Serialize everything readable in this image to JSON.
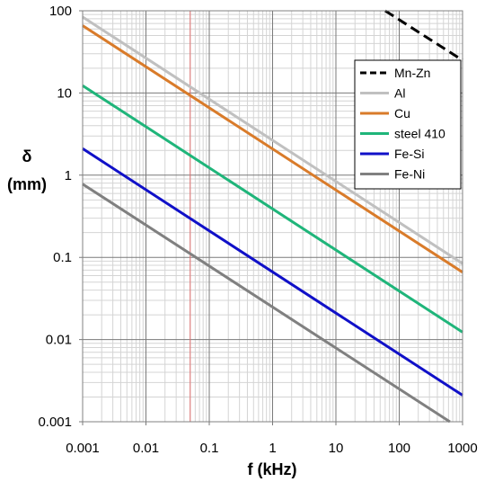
{
  "chart_data": {
    "type": "line",
    "title": "",
    "xlabel": "f (kHz)",
    "ylabel_symbol": "δ",
    "ylabel_unit": "(mm)",
    "xscale": "log",
    "yscale": "log",
    "xlim": [
      0.001,
      1000
    ],
    "ylim": [
      0.001,
      100
    ],
    "x_tick_labels": [
      "0.001",
      "0.01",
      "0.1",
      "1",
      "10",
      "100",
      "1000"
    ],
    "y_tick_labels": [
      "0.001",
      "0.01",
      "0.1",
      "1",
      "10",
      "100"
    ],
    "grid": true,
    "legend_position": "top-right",
    "reference_line": {
      "x": 0.05,
      "color": "#e07070"
    },
    "series": [
      {
        "name": "Mn-Zn",
        "color": "#000000",
        "dash": "dashed",
        "x": [
          60,
          1000
        ],
        "y": [
          100,
          25
        ]
      },
      {
        "name": "Al",
        "color": "#c0c0c0",
        "dash": "solid",
        "x": [
          0.001,
          1000
        ],
        "y": [
          84,
          0.084
        ]
      },
      {
        "name": "Cu",
        "color": "#d97b2a",
        "dash": "solid",
        "x": [
          0.001,
          1000
        ],
        "y": [
          66,
          0.066
        ]
      },
      {
        "name": "steel 410",
        "color": "#1fb57a",
        "dash": "solid",
        "x": [
          0.001,
          1000
        ],
        "y": [
          12.3,
          0.0123
        ]
      },
      {
        "name": "Fe-Si",
        "color": "#1010c8",
        "dash": "solid",
        "x": [
          0.001,
          1000
        ],
        "y": [
          2.1,
          0.0021
        ]
      },
      {
        "name": "Fe-Ni",
        "color": "#808080",
        "dash": "solid",
        "x": [
          0.001,
          630
        ],
        "y": [
          0.78,
          0.001
        ]
      }
    ]
  }
}
